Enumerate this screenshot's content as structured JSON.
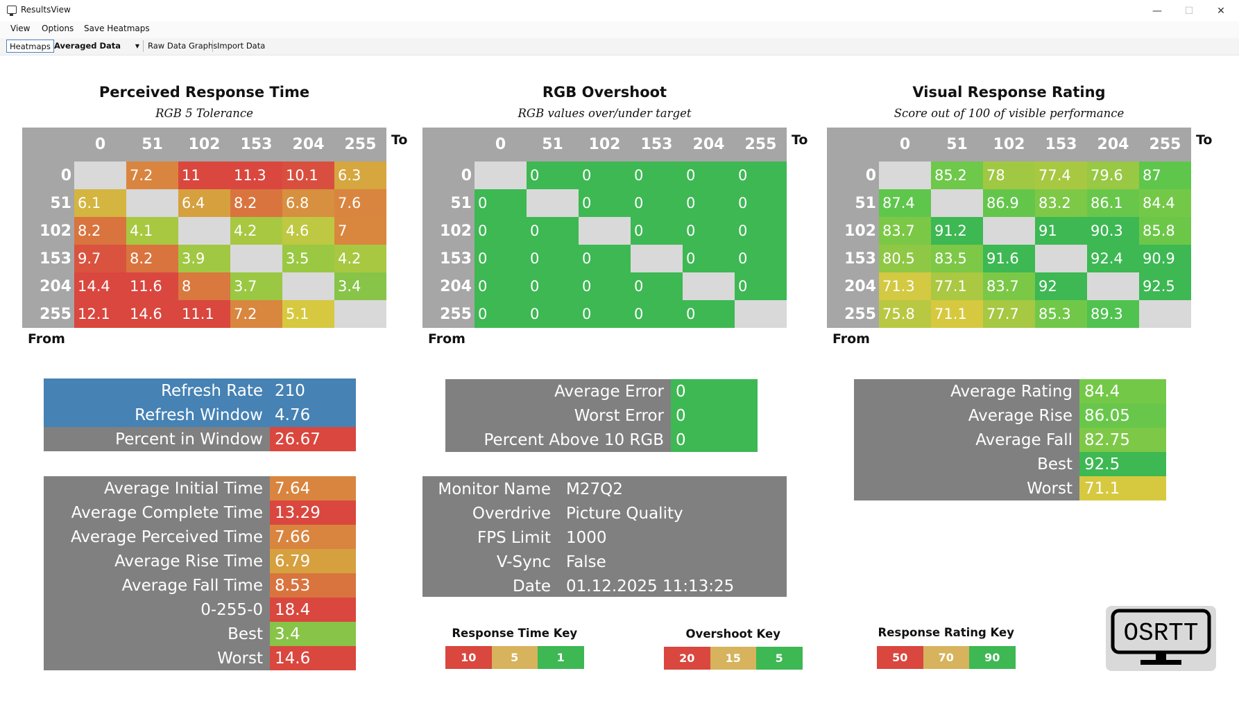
{
  "window": {
    "title": "ResultsView",
    "minimize_glyph": "—",
    "maximize_glyph": "☐",
    "close_glyph": "✕"
  },
  "menu": [
    "View",
    "Options",
    "Save Heatmaps"
  ],
  "toolbar": {
    "heatmaps": "Heatmaps",
    "data_mode": "Averaged Data",
    "raw_graphs": "Raw Data Graphs",
    "import": "Import Data"
  },
  "axis_labels": {
    "to": "To",
    "from": "From"
  },
  "levels": [
    "0",
    "51",
    "102",
    "153",
    "204",
    "255"
  ],
  "heatmaps": [
    {
      "title": "Perceived Response Time",
      "subtitle": "RGB 5 Tolerance",
      "rows": [
        [
          null,
          "7.2",
          "11",
          "11.3",
          "10.1",
          "6.3"
        ],
        [
          "6.1",
          null,
          "6.4",
          "8.2",
          "6.8",
          "7.6"
        ],
        [
          "8.2",
          "4.1",
          null,
          "4.2",
          "4.6",
          "7"
        ],
        [
          "9.7",
          "8.2",
          "3.9",
          null,
          "3.5",
          "4.2"
        ],
        [
          "14.4",
          "11.6",
          "8",
          "3.7",
          null,
          "3.4"
        ],
        [
          "12.1",
          "14.6",
          "11.1",
          "7.2",
          "5.1",
          null
        ]
      ],
      "colors": [
        [
          "#d9d9d9",
          "#d9853f",
          "#d9473f",
          "#d9473f",
          "#d94f3f",
          "#d6a63f"
        ],
        [
          "#d4b53f",
          "#d9d9d9",
          "#d6a03f",
          "#d9743f",
          "#d7903f",
          "#d9853f"
        ],
        [
          "#d9743f",
          "#a8c842",
          "#d9d9d9",
          "#a8c842",
          "#bfc842",
          "#d9863f"
        ],
        [
          "#d9533f",
          "#d9743f",
          "#a1c842",
          "#d9d9d9",
          "#9ac842",
          "#a8c842"
        ],
        [
          "#d9473f",
          "#d9473f",
          "#d9783f",
          "#9ac842",
          "#d9d9d9",
          "#88c448"
        ],
        [
          "#d9473f",
          "#d9473f",
          "#d9473f",
          "#d9863f",
          "#d6c93f",
          "#d9d9d9"
        ]
      ]
    },
    {
      "title": "RGB Overshoot",
      "subtitle": "RGB values over/under target",
      "rows": [
        [
          null,
          "0",
          "0",
          "0",
          "0",
          "0"
        ],
        [
          "0",
          null,
          "0",
          "0",
          "0",
          "0"
        ],
        [
          "0",
          "0",
          null,
          "0",
          "0",
          "0"
        ],
        [
          "0",
          "0",
          "0",
          null,
          "0",
          "0"
        ],
        [
          "0",
          "0",
          "0",
          "0",
          null,
          "0"
        ],
        [
          "0",
          "0",
          "0",
          "0",
          "0",
          null
        ]
      ],
      "colors": [
        [
          "#d9d9d9",
          "#3db853",
          "#3db853",
          "#3db853",
          "#3db853",
          "#3db853"
        ],
        [
          "#3db853",
          "#d9d9d9",
          "#3db853",
          "#3db853",
          "#3db853",
          "#3db853"
        ],
        [
          "#3db853",
          "#3db853",
          "#d9d9d9",
          "#3db853",
          "#3db853",
          "#3db853"
        ],
        [
          "#3db853",
          "#3db853",
          "#3db853",
          "#d9d9d9",
          "#3db853",
          "#3db853"
        ],
        [
          "#3db853",
          "#3db853",
          "#3db853",
          "#3db853",
          "#d9d9d9",
          "#3db853"
        ],
        [
          "#3db853",
          "#3db853",
          "#3db853",
          "#3db853",
          "#3db853",
          "#d9d9d9"
        ]
      ]
    },
    {
      "title": "Visual Response Rating",
      "subtitle": "Score out of 100 of visible performance",
      "rows": [
        [
          null,
          "85.2",
          "78",
          "77.4",
          "79.6",
          "87"
        ],
        [
          "87.4",
          null,
          "86.9",
          "83.2",
          "86.1",
          "84.4"
        ],
        [
          "83.7",
          "91.2",
          null,
          "91",
          "90.3",
          "85.8"
        ],
        [
          "80.5",
          "83.5",
          "91.6",
          null,
          "92.4",
          "90.9"
        ],
        [
          "71.3",
          "77.1",
          "83.7",
          "92",
          null,
          "92.5"
        ],
        [
          "75.8",
          "71.1",
          "77.7",
          "85.3",
          "89.3",
          null
        ]
      ],
      "colors": [
        [
          "#d9d9d9",
          "#6ec84a",
          "#a1c842",
          "#a8c842",
          "#98c844",
          "#5fc64c"
        ],
        [
          "#5fc64c",
          "#d9d9d9",
          "#63c64b",
          "#7ec847",
          "#68c74a",
          "#74c848"
        ],
        [
          "#7bc847",
          "#3db853",
          "#d9d9d9",
          "#3db853",
          "#3db853",
          "#6cc749"
        ],
        [
          "#8fc845",
          "#7dc847",
          "#3db853",
          "#d9d9d9",
          "#3db853",
          "#3db853"
        ],
        [
          "#d3c942",
          "#aac842",
          "#7bc847",
          "#3db853",
          "#d9d9d9",
          "#3db853"
        ],
        [
          "#b9c842",
          "#d6c93f",
          "#a6c842",
          "#71c848",
          "#4fc24f",
          "#d9d9d9"
        ]
      ]
    }
  ],
  "refresh_table": [
    {
      "label": "Refresh Rate",
      "value": "210",
      "label_color": "#4682b4",
      "value_color": "#4682b4"
    },
    {
      "label": "Refresh Window",
      "value": "4.76",
      "label_color": "#4682b4",
      "value_color": "#4682b4"
    },
    {
      "label": "Percent in Window",
      "value": "26.67",
      "label_color": "#808080",
      "value_color": "#d9473f"
    }
  ],
  "time_table": [
    {
      "label": "Average Initial Time",
      "value": "7.64",
      "value_color": "#d9853f"
    },
    {
      "label": "Average Complete Time",
      "value": "13.29",
      "value_color": "#d9473f"
    },
    {
      "label": "Average Perceived Time",
      "value": "7.66",
      "value_color": "#d9853f"
    },
    {
      "label": "Average Rise Time",
      "value": "6.79",
      "value_color": "#d6a03f"
    },
    {
      "label": "Average Fall Time",
      "value": "8.53",
      "value_color": "#d9743f"
    },
    {
      "label": "0-255-0",
      "value": "18.4",
      "value_color": "#d9473f"
    },
    {
      "label": "Best",
      "value": "3.4",
      "value_color": "#88c448"
    },
    {
      "label": "Worst",
      "value": "14.6",
      "value_color": "#d9473f"
    }
  ],
  "error_table": [
    {
      "label": "Average Error",
      "value": "0",
      "value_color": "#3db853"
    },
    {
      "label": "Worst Error",
      "value": "0",
      "value_color": "#3db853"
    },
    {
      "label": "Percent Above 10 RGB",
      "value": "0",
      "value_color": "#3db853"
    }
  ],
  "monitor_table": [
    {
      "label": "Monitor Name",
      "value": "M27Q2"
    },
    {
      "label": "Overdrive",
      "value": "Picture Quality"
    },
    {
      "label": "FPS Limit",
      "value": "1000"
    },
    {
      "label": "V-Sync",
      "value": "False"
    },
    {
      "label": "Date",
      "value": "01.12.2025 11:13:25"
    }
  ],
  "rating_table": [
    {
      "label": "Average Rating",
      "value": "84.4",
      "value_color": "#74c848"
    },
    {
      "label": "Average Rise",
      "value": "86.05",
      "value_color": "#68c74a"
    },
    {
      "label": "Average Fall",
      "value": "82.75",
      "value_color": "#7ec847"
    },
    {
      "label": "Best",
      "value": "92.5",
      "value_color": "#3db853"
    },
    {
      "label": "Worst",
      "value": "71.1",
      "value_color": "#d6c93f"
    }
  ],
  "keys": [
    {
      "title": "Response Time Key",
      "cells": [
        {
          "label": "10",
          "color": "#d9473f"
        },
        {
          "label": "5",
          "color": "#d6b35c"
        },
        {
          "label": "1",
          "color": "#3db853"
        }
      ]
    },
    {
      "title": "Overshoot Key",
      "cells": [
        {
          "label": "20",
          "color": "#d9473f"
        },
        {
          "label": "15",
          "color": "#d6b35c"
        },
        {
          "label": "5",
          "color": "#3db853"
        }
      ]
    },
    {
      "title": "Response Rating Key",
      "cells": [
        {
          "label": "50",
          "color": "#d9473f"
        },
        {
          "label": "70",
          "color": "#d6b35c"
        },
        {
          "label": "90",
          "color": "#3db853"
        }
      ]
    }
  ],
  "logo": {
    "text": "OSRTT",
    "icon": "monitor-logo-icon"
  }
}
